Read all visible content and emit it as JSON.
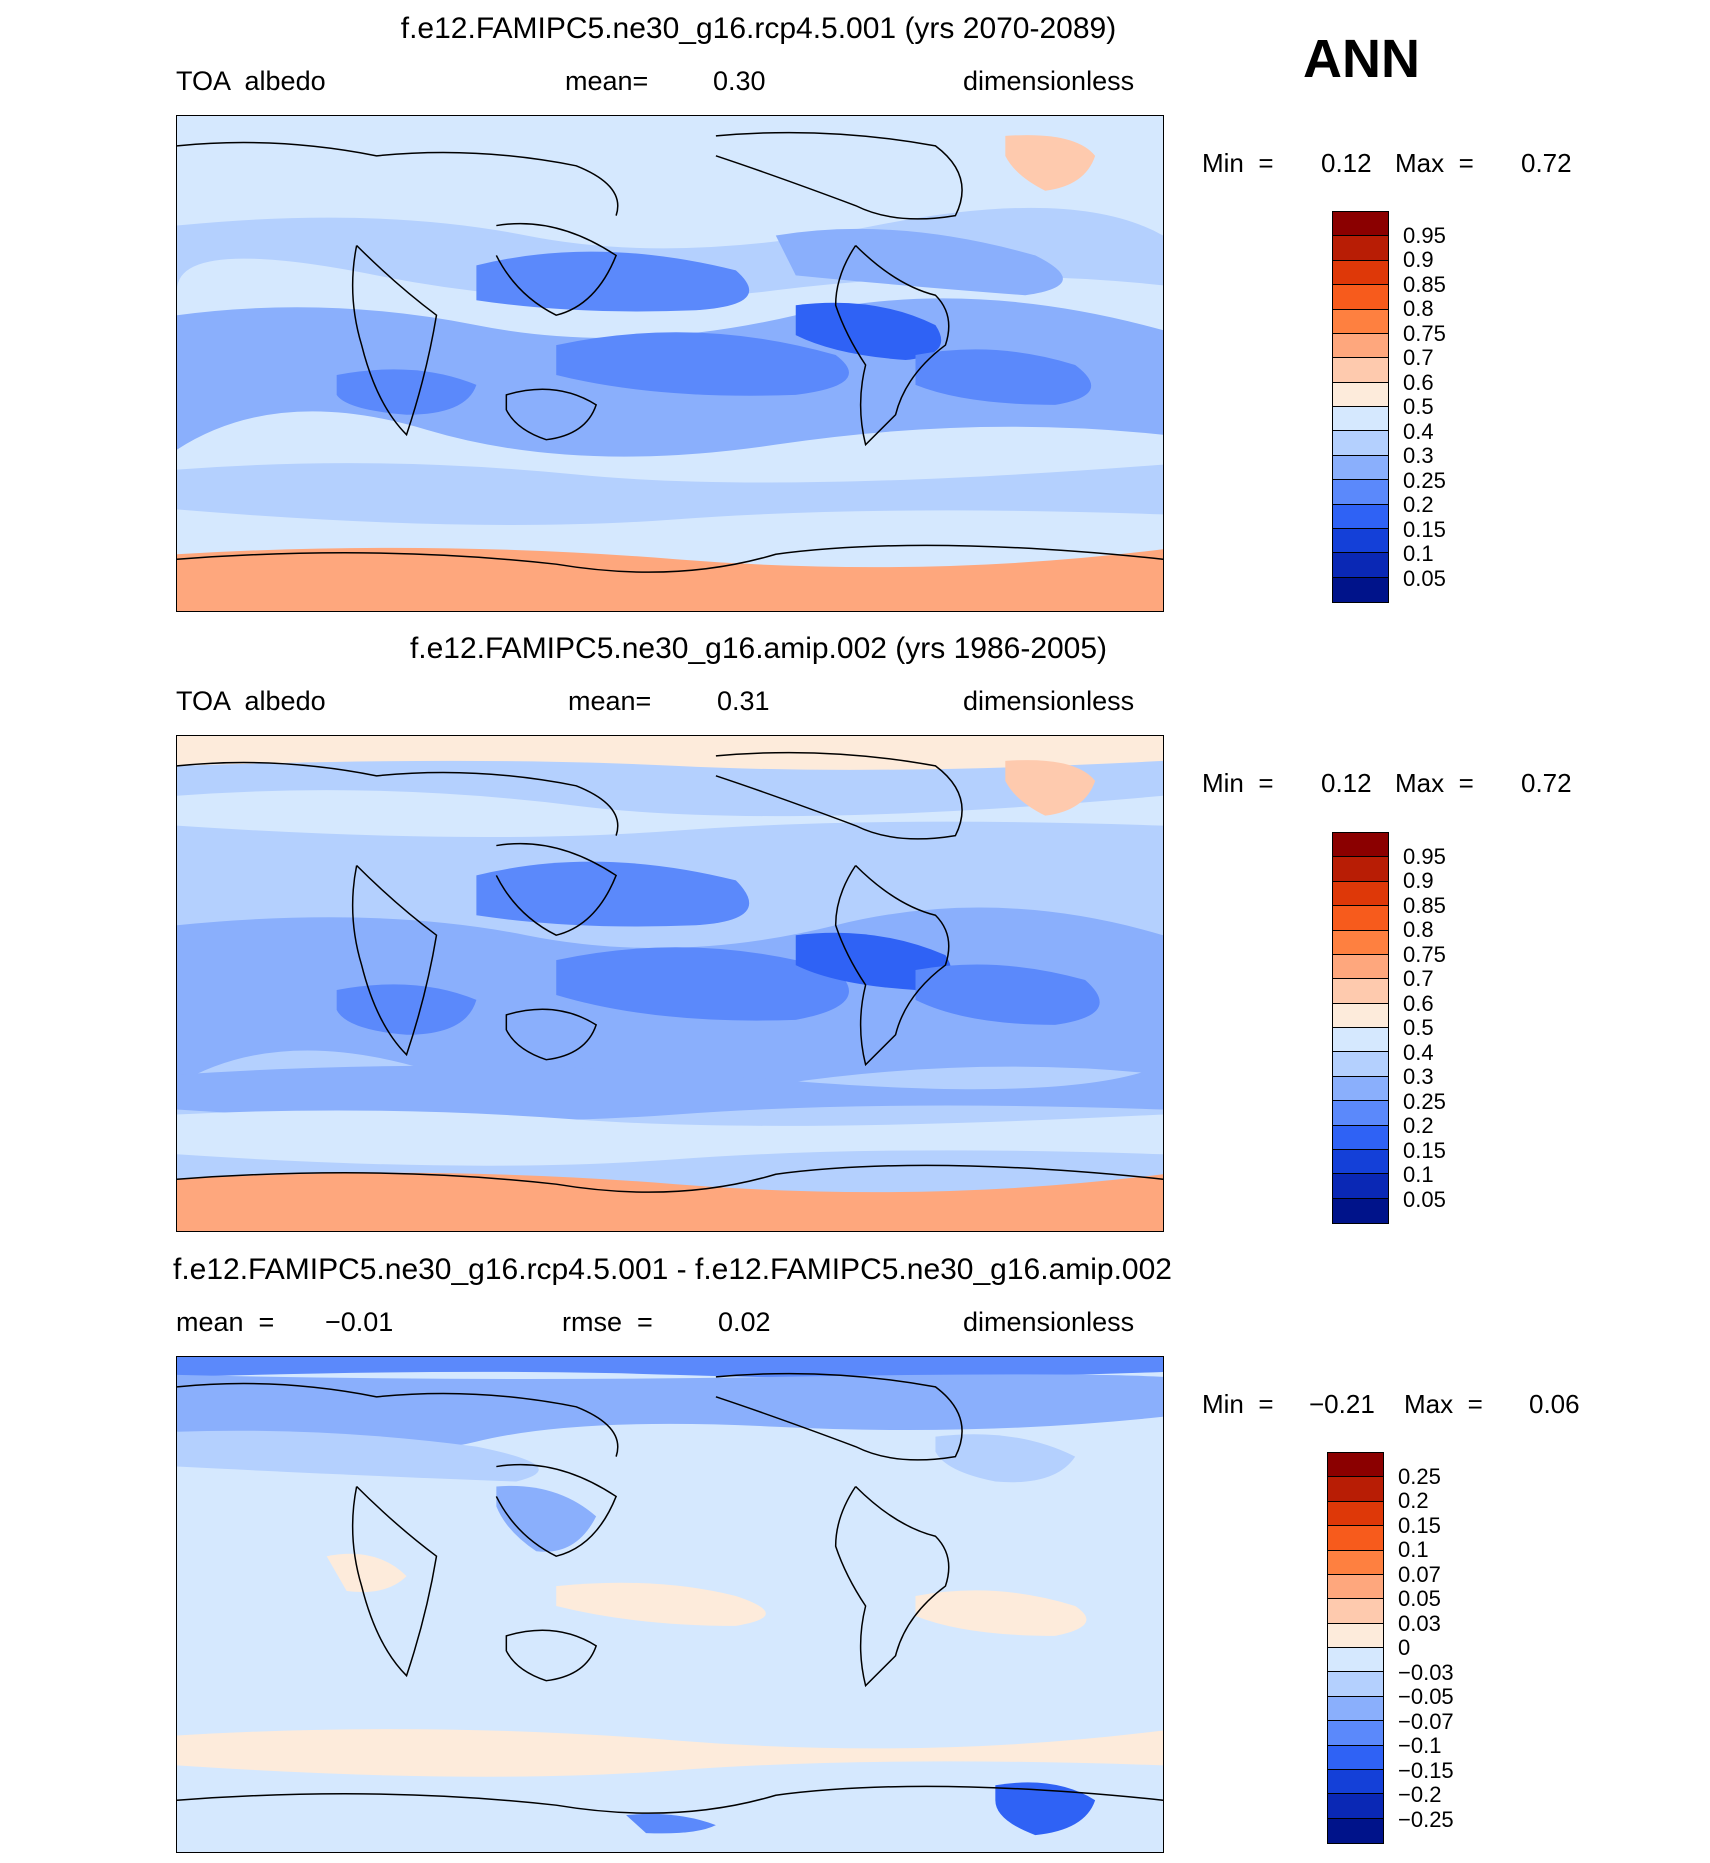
{
  "season": "ANN",
  "panels": [
    {
      "title": "f.e12.FAMIPC5.ne30_g16.rcp4.5.001 (yrs 2070-2089)",
      "left_label": "TOA  albedo",
      "mid_label": "mean=",
      "mid_value": "0.30",
      "right_label": "dimensionless",
      "min_label": "Min  =",
      "min_value": "0.12",
      "max_label": "Max  =",
      "max_value": "0.72",
      "colorbar_labels": [
        "0.95",
        "0.9",
        "0.85",
        "0.8",
        "0.75",
        "0.7",
        "0.6",
        "0.5",
        "0.4",
        "0.3",
        "0.25",
        "0.2",
        "0.15",
        "0.1",
        "0.05"
      ],
      "colorbar_colors": [
        "#8b0000",
        "#b81d05",
        "#de3808",
        "#f75b1c",
        "#fe8040",
        "#fea77d",
        "#fecaae",
        "#fdebdb",
        "#d5e8fe",
        "#b4d0fe",
        "#8aaffc",
        "#5b89fb",
        "#2f62f5",
        "#1440d8",
        "#0a28b5",
        "#00138a"
      ]
    },
    {
      "title": "f.e12.FAMIPC5.ne30_g16.amip.002 (yrs 1986-2005)",
      "left_label": "TOA  albedo",
      "mid_label": "mean=",
      "mid_value": "0.31",
      "right_label": "dimensionless",
      "min_label": "Min  =",
      "min_value": "0.12",
      "max_label": "Max  =",
      "max_value": "0.72",
      "colorbar_labels": [
        "0.95",
        "0.9",
        "0.85",
        "0.8",
        "0.75",
        "0.7",
        "0.6",
        "0.5",
        "0.4",
        "0.3",
        "0.25",
        "0.2",
        "0.15",
        "0.1",
        "0.05"
      ],
      "colorbar_colors": [
        "#8b0000",
        "#b81d05",
        "#de3808",
        "#f75b1c",
        "#fe8040",
        "#fea77d",
        "#fecaae",
        "#fdebdb",
        "#d5e8fe",
        "#b4d0fe",
        "#8aaffc",
        "#5b89fb",
        "#2f62f5",
        "#1440d8",
        "#0a28b5",
        "#00138a"
      ]
    },
    {
      "title": "f.e12.FAMIPC5.ne30_g16.rcp4.5.001 - f.e12.FAMIPC5.ne30_g16.amip.002",
      "left_label": "mean  =",
      "left_value": "−0.01",
      "mid_label": "rmse  =",
      "mid_value": "0.02",
      "right_label": "dimensionless",
      "min_label": "Min  =",
      "min_value": "−0.21",
      "max_label": "Max  =",
      "max_value": "0.06",
      "colorbar_labels": [
        "0.25",
        "0.2",
        "0.15",
        "0.1",
        "0.07",
        "0.05",
        "0.03",
        "0",
        "−0.03",
        "−0.05",
        "−0.07",
        "−0.1",
        "−0.15",
        "−0.2",
        "−0.25"
      ],
      "colorbar_colors": [
        "#8b0000",
        "#b81d05",
        "#de3808",
        "#f75b1c",
        "#fe8040",
        "#fea77d",
        "#fecaae",
        "#fdebdb",
        "#d5e8fe",
        "#b4d0fe",
        "#8aaffc",
        "#5b89fb",
        "#2f62f5",
        "#1440d8",
        "#0a28b5",
        "#00138a"
      ]
    }
  ]
}
